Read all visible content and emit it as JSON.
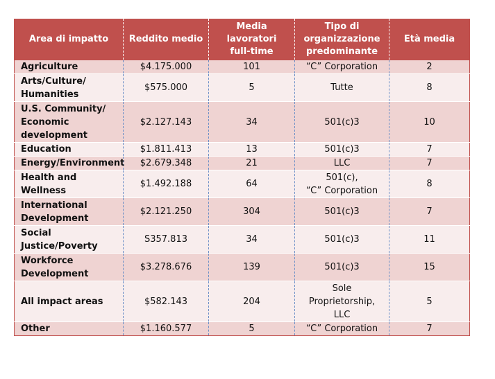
{
  "columns": [
    "Area di impatto",
    "Reddito medio",
    "Media\nlavoratori\nfull-time",
    "Tipo di\norganizzazione\npredominante",
    "Età media"
  ],
  "rows": [
    {
      "area": "Agriculture",
      "revenue": "$4.175.000",
      "workers": "101",
      "org_type": "“C” Corporation",
      "age": "2"
    },
    {
      "area": "Arts/Culture/\nHumanities",
      "revenue": "$575.000",
      "workers": "5",
      "org_type": "Tutte",
      "age": "8"
    },
    {
      "area": "U.S. Community/\nEconomic\ndevelopment",
      "revenue": "$2.127.143",
      "workers": "34",
      "org_type": "501(c)3",
      "age": "10"
    },
    {
      "area": "Education",
      "revenue": "$1.811.413",
      "workers": "13",
      "org_type": "501(c)3",
      "age": "7"
    },
    {
      "area": "Energy/Environment",
      "revenue": "$2.679.348",
      "workers": "21",
      "org_type": "LLC",
      "age": "7"
    },
    {
      "area": "Health and Wellness",
      "revenue": "$1.492.188",
      "workers": "64",
      "org_type": "501(c),\n“C” Corporation",
      "age": "8"
    },
    {
      "area": "International\nDevelopment",
      "revenue": "$2.121.250",
      "workers": "304",
      "org_type": "501(c)3",
      "age": "7"
    },
    {
      "area": "Social\nJustice/Poverty",
      "revenue": "S357.813",
      "workers": "34",
      "org_type": "501(c)3",
      "age": "11"
    },
    {
      "area": "Workforce\nDevelopment",
      "revenue": "$3.278.676",
      "workers": "139",
      "org_type": "501(c)3",
      "age": "15"
    },
    {
      "area": "All impact areas",
      "revenue": "$582.143",
      "workers": "204",
      "org_type": "Sole\nProprietorship,\nLLC",
      "age": "5"
    },
    {
      "area": "Other",
      "revenue": "$1.160.577",
      "workers": "5",
      "org_type": "“C” Corporation",
      "age": "7"
    }
  ],
  "colors": {
    "header_bg": "#c0504d",
    "header_text": "#ffffff",
    "row_odd": "#efd3d2",
    "row_even": "#f8eded",
    "column_divider": "#6b8fc7"
  }
}
